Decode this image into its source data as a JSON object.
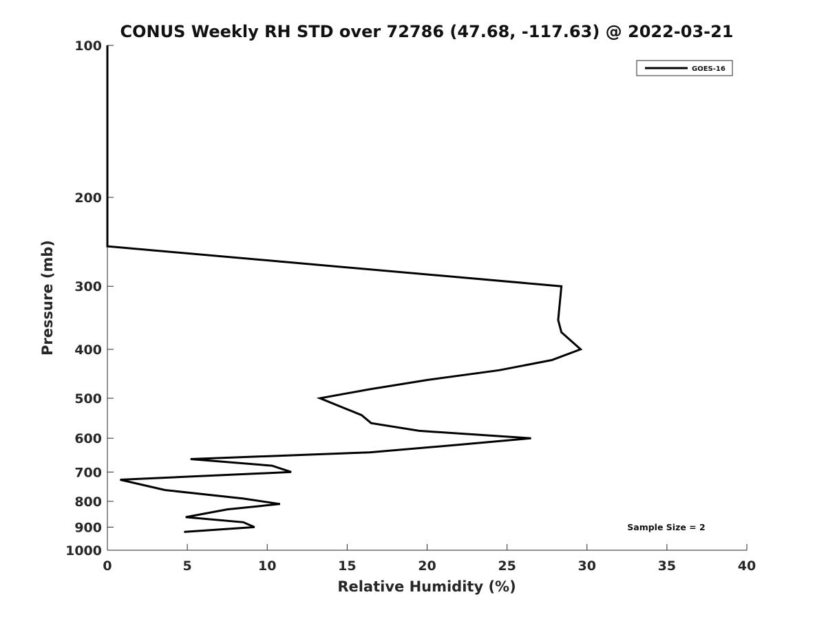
{
  "chart_data": {
    "type": "line",
    "title": "CONUS Weekly RH STD over 72786 (47.68, -117.63) @ 2022-03-21",
    "xlabel": "Relative Humidity (%)",
    "ylabel": "Pressure (mb)",
    "xlim": [
      0,
      40
    ],
    "ylim": [
      100,
      1000
    ],
    "y_scale": "log",
    "y_reversed": true,
    "grid": false,
    "legend_position": "top-right",
    "x_ticks": [
      "0",
      "5",
      "10",
      "15",
      "20",
      "25",
      "30",
      "35",
      "40"
    ],
    "x_tick_values": [
      0,
      5,
      10,
      15,
      20,
      25,
      30,
      35,
      40
    ],
    "y_ticks": [
      "100",
      "200",
      "300",
      "400",
      "500",
      "600",
      "700",
      "800",
      "900",
      "1000"
    ],
    "y_tick_values": [
      100,
      200,
      300,
      400,
      500,
      600,
      700,
      800,
      900,
      1000
    ],
    "series": [
      {
        "name": "GOES-16",
        "color": "#000000",
        "x": [
          0,
          0,
          0,
          0,
          28.4,
          28.2,
          28.4,
          29.6,
          27.8,
          24.5,
          20.0,
          16.4,
          13.3,
          15.9,
          16.5,
          19.5,
          26.5,
          21.5,
          16.4,
          5.2,
          10.3,
          11.5,
          0.8,
          3.6,
          8.5,
          10.8,
          7.5,
          4.9,
          8.5,
          9.2,
          4.8
        ],
        "y": [
          100,
          150,
          200,
          250,
          300,
          350,
          370,
          400,
          420,
          440,
          460,
          480,
          500,
          540,
          560,
          580,
          600,
          620,
          640,
          660,
          680,
          700,
          725,
          760,
          790,
          810,
          830,
          860,
          880,
          900,
          920
        ]
      }
    ],
    "annotations": [
      {
        "text": "Sample Size = 2",
        "position": "bottom-right"
      }
    ]
  }
}
